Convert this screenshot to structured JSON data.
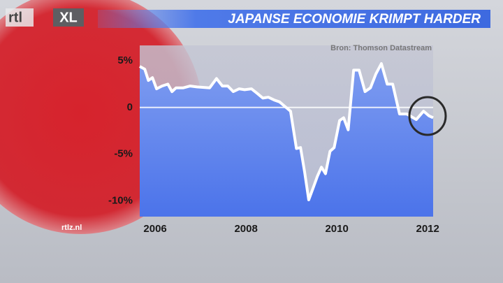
{
  "chart_data": {
    "type": "line",
    "title": "JAPANSE ECONOMIE KRIMPT HARDER",
    "source": "Bron: Thomson Datastream",
    "website": "rtlz.nl",
    "logo": [
      "rtl",
      "XL"
    ],
    "x": [
      2005.66,
      2005.77,
      2005.85,
      2005.94,
      2006.03,
      2006.15,
      2006.28,
      2006.37,
      2006.46,
      2006.62,
      2006.77,
      2006.92,
      2007.2,
      2007.35,
      2007.48,
      2007.6,
      2007.72,
      2007.85,
      2007.97,
      2008.12,
      2008.25,
      2008.37,
      2008.49,
      2008.62,
      2008.74,
      2008.86,
      2008.98,
      2009.11,
      2009.2,
      2009.29,
      2009.38,
      2009.48,
      2009.57,
      2009.66,
      2009.75,
      2009.85,
      2009.94,
      2010.06,
      2010.15,
      2010.25,
      2010.37,
      2010.49,
      2010.62,
      2010.74,
      2010.86,
      2010.98,
      2011.11,
      2011.23,
      2011.38,
      2011.54,
      2011.75,
      2011.91,
      2012.03,
      2012.12
    ],
    "series": [
      {
        "color": "#ffffff",
        "values": [
          4.4,
          4.1,
          2.9,
          3.2,
          2.0,
          2.3,
          2.5,
          1.7,
          2.1,
          2.1,
          2.3,
          2.2,
          2.1,
          3.1,
          2.3,
          2.3,
          1.7,
          2.0,
          1.9,
          2.0,
          1.5,
          1.0,
          1.1,
          0.8,
          0.6,
          0.1,
          -0.4,
          -4.4,
          -4.3,
          -6.9,
          -9.9,
          -8.6,
          -7.4,
          -6.4,
          -7.1,
          -4.7,
          -4.3,
          -1.4,
          -1.1,
          -2.4,
          4.0,
          4.0,
          1.7,
          2.1,
          3.6,
          4.7,
          2.5,
          2.5,
          -0.7,
          -0.7,
          -1.3,
          -0.4,
          -0.9,
          -1.1
        ]
      }
    ],
    "xlim": [
      2005.66,
      2012.12
    ],
    "xticks": [
      2006,
      2008,
      2010,
      2012
    ],
    "ylim": [
      -11.7,
      6.65
    ],
    "yticks": [
      {
        "value": 5,
        "label": "5%"
      },
      0,
      {
        "value": -5,
        "label": "-5%"
      },
      {
        "value": -10,
        "label": "-10%"
      }
    ],
    "zero_line": true
  }
}
